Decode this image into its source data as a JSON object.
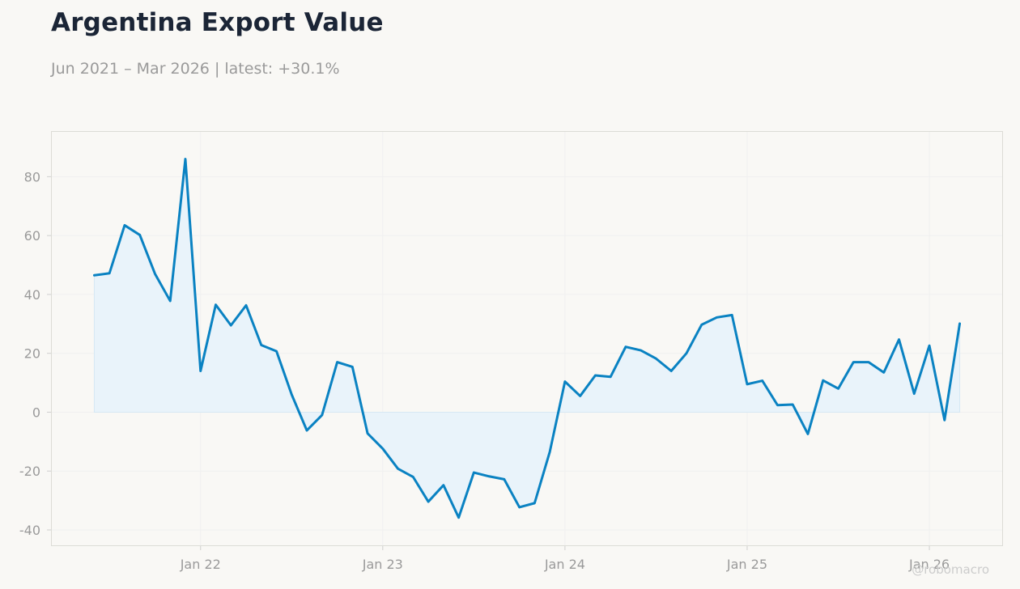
{
  "header": {
    "title": "Argentina Export Value",
    "subtitle": "Jun 2021 – Mar 2026 | latest: +30.1%"
  },
  "watermark": "@robomacro",
  "colors": {
    "line": "#0a82c2",
    "fill": "#e9f3fa",
    "grid": "#f0f0f0",
    "frame": "#dcdcd6"
  },
  "chart_data": {
    "type": "area",
    "title": "Argentina Export Value",
    "subtitle": "Jun 2021 – Mar 2026 | latest: +30.1%",
    "xlabel": "",
    "ylabel": "",
    "x_start": "2021-06",
    "x_end": "2026-03",
    "x_ticks": [
      {
        "date": "2022-01",
        "label": "Jan 22"
      },
      {
        "date": "2023-01",
        "label": "Jan 23"
      },
      {
        "date": "2024-01",
        "label": "Jan 24"
      },
      {
        "date": "2025-01",
        "label": "Jan 25"
      },
      {
        "date": "2026-01",
        "label": "Jan 26"
      }
    ],
    "y_ticks": [
      -40,
      -20,
      0,
      20,
      40,
      60,
      80
    ],
    "ylim": [
      -45.5,
      95.5
    ],
    "grid": true,
    "series": [
      {
        "values": [
          {
            "date": "2021-06",
            "value": 46.5
          },
          {
            "date": "2021-07",
            "value": 47.2
          },
          {
            "date": "2021-08",
            "value": 63.5
          },
          {
            "date": "2021-09",
            "value": 60.2
          },
          {
            "date": "2021-10",
            "value": 47.0
          },
          {
            "date": "2021-11",
            "value": 37.8
          },
          {
            "date": "2021-12",
            "value": 86.0
          },
          {
            "date": "2022-01",
            "value": 14.0
          },
          {
            "date": "2022-02",
            "value": 36.5
          },
          {
            "date": "2022-03",
            "value": 29.5
          },
          {
            "date": "2022-04",
            "value": 36.3
          },
          {
            "date": "2022-05",
            "value": 22.8
          },
          {
            "date": "2022-06",
            "value": 20.7
          },
          {
            "date": "2022-07",
            "value": 6.0
          },
          {
            "date": "2022-08",
            "value": -6.2
          },
          {
            "date": "2022-09",
            "value": -1.0
          },
          {
            "date": "2022-10",
            "value": 17.0
          },
          {
            "date": "2022-11",
            "value": 15.4
          },
          {
            "date": "2022-12",
            "value": -7.2
          },
          {
            "date": "2023-01",
            "value": -12.4
          },
          {
            "date": "2023-02",
            "value": -19.2
          },
          {
            "date": "2023-03",
            "value": -22.0
          },
          {
            "date": "2023-04",
            "value": -30.4
          },
          {
            "date": "2023-05",
            "value": -24.8
          },
          {
            "date": "2023-06",
            "value": -35.8
          },
          {
            "date": "2023-07",
            "value": -20.5
          },
          {
            "date": "2023-08",
            "value": -21.8
          },
          {
            "date": "2023-09",
            "value": -22.8
          },
          {
            "date": "2023-10",
            "value": -32.3
          },
          {
            "date": "2023-11",
            "value": -30.9
          },
          {
            "date": "2023-12",
            "value": -13.5
          },
          {
            "date": "2024-01",
            "value": 10.4
          },
          {
            "date": "2024-02",
            "value": 5.5
          },
          {
            "date": "2024-03",
            "value": 12.5
          },
          {
            "date": "2024-04",
            "value": 12.0
          },
          {
            "date": "2024-05",
            "value": 22.2
          },
          {
            "date": "2024-06",
            "value": 21.0
          },
          {
            "date": "2024-07",
            "value": 18.2
          },
          {
            "date": "2024-08",
            "value": 14.0
          },
          {
            "date": "2024-09",
            "value": 20.0
          },
          {
            "date": "2024-10",
            "value": 29.7
          },
          {
            "date": "2024-11",
            "value": 32.2
          },
          {
            "date": "2024-12",
            "value": 33.0
          },
          {
            "date": "2025-01",
            "value": 9.5
          },
          {
            "date": "2025-02",
            "value": 10.7
          },
          {
            "date": "2025-03",
            "value": 2.4
          },
          {
            "date": "2025-04",
            "value": 2.6
          },
          {
            "date": "2025-05",
            "value": -7.4
          },
          {
            "date": "2025-06",
            "value": 10.8
          },
          {
            "date": "2025-07",
            "value": 8.0
          },
          {
            "date": "2025-08",
            "value": 17.0
          },
          {
            "date": "2025-09",
            "value": 17.0
          },
          {
            "date": "2025-10",
            "value": 13.5
          },
          {
            "date": "2025-11",
            "value": 24.7
          },
          {
            "date": "2025-12",
            "value": 6.3
          },
          {
            "date": "2026-01",
            "value": 22.6
          },
          {
            "date": "2026-02",
            "value": -2.7
          },
          {
            "date": "2026-03",
            "value": 30.1
          }
        ]
      }
    ]
  }
}
